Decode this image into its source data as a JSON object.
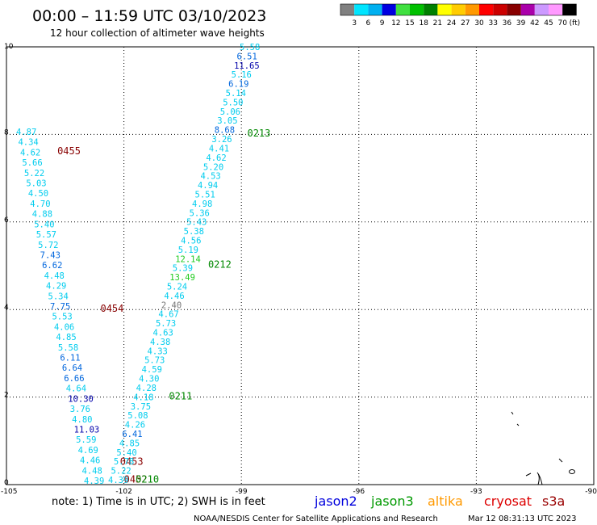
{
  "header": {
    "title": "00:00 – 11:59 UTC 03/10/2023",
    "subtitle": "12 hour collection of altimeter wave heights"
  },
  "legend": {
    "labels": [
      "3",
      "6",
      "9",
      "12",
      "15",
      "18",
      "21",
      "24",
      "27",
      "30",
      "33",
      "36",
      "39",
      "42",
      "45",
      "70"
    ],
    "unit": "(ft)",
    "colors": [
      "#808080",
      "#00e5ff",
      "#00b0f0",
      "#0000e0",
      "#40e040",
      "#00c000",
      "#008000",
      "#ffff00",
      "#ffcc00",
      "#ff9900",
      "#ff0000",
      "#cc0000",
      "#880000",
      "#aa00aa",
      "#cc99ff",
      "#ff99ff",
      "#000000"
    ]
  },
  "axes": {
    "x_ticks": [
      "-105",
      "-102",
      "-99",
      "-96",
      "-93",
      "-90"
    ],
    "y_ticks": [
      "0",
      "2",
      "4",
      "6",
      "8",
      "10"
    ]
  },
  "footer": {
    "note": "note:  1) Time is in UTC;  2) SWH is in feet",
    "satellites": [
      {
        "name": "jason2",
        "color": "#0000dd"
      },
      {
        "name": "jason3",
        "color": "#009900"
      },
      {
        "name": "altika",
        "color": "#ff9900"
      },
      {
        "name": "cryosat",
        "color": "#dd0000"
      },
      {
        "name": "s3a",
        "color": "#990000"
      }
    ],
    "credit": "NOAA/NESDIS Center for Satellite Applications and Research",
    "timestamp": "Mar 12 08:31:13 UTC 2023"
  },
  "tracks": [
    {
      "readings": [
        {
          "v": "4.87",
          "c": "cyan"
        },
        {
          "v": "4.34",
          "c": "cyan"
        },
        {
          "v": "4.62",
          "c": "cyan"
        },
        {
          "v": "5.66",
          "c": "cyan"
        },
        {
          "v": "5.22",
          "c": "cyan"
        },
        {
          "v": "5.03",
          "c": "cyan"
        },
        {
          "v": "4.50",
          "c": "cyan"
        },
        {
          "v": "4.70",
          "c": "cyan"
        },
        {
          "v": "4.88",
          "c": "cyan"
        },
        {
          "v": "5.40",
          "c": "cyan"
        },
        {
          "v": "5.57",
          "c": "cyan"
        },
        {
          "v": "5.72",
          "c": "cyan"
        },
        {
          "v": "7.43",
          "c": "blue"
        },
        {
          "v": "6.62",
          "c": "blue"
        },
        {
          "v": "4.48",
          "c": "cyan"
        },
        {
          "v": "4.29",
          "c": "cyan"
        },
        {
          "v": "5.34",
          "c": "cyan"
        },
        {
          "v": "7.75",
          "c": "blue"
        },
        {
          "v": "5.53",
          "c": "cyan"
        },
        {
          "v": "4.06",
          "c": "cyan"
        },
        {
          "v": "4.85",
          "c": "cyan"
        },
        {
          "v": "5.58",
          "c": "cyan"
        },
        {
          "v": "6.11",
          "c": "blue"
        },
        {
          "v": "6.64",
          "c": "blue"
        },
        {
          "v": "6.66",
          "c": "blue"
        },
        {
          "v": "4.64",
          "c": "cyan"
        },
        {
          "v": "10.30",
          "c": "navy"
        },
        {
          "v": "3.76",
          "c": "cyan"
        },
        {
          "v": "4.80",
          "c": "cyan"
        },
        {
          "v": "11.03",
          "c": "navy"
        },
        {
          "v": "5.59",
          "c": "cyan"
        },
        {
          "v": "4.69",
          "c": "cyan"
        },
        {
          "v": "4.46",
          "c": "cyan"
        },
        {
          "v": "4.48",
          "c": "cyan"
        },
        {
          "v": "4.39",
          "c": "cyan"
        }
      ],
      "times": [
        {
          "label": "0455",
          "lon": -103.7,
          "lat": 7.55
        },
        {
          "label": "0454",
          "lon": -102.6,
          "lat": 3.95
        },
        {
          "label": "0453",
          "lon": -102.1,
          "lat": 0.45
        },
        {
          "label": "0452",
          "lon": -102.0,
          "lat": 0.05
        }
      ]
    },
    {
      "readings": [
        {
          "v": "5.58",
          "c": "cyan"
        },
        {
          "v": "6.51",
          "c": "blue"
        },
        {
          "v": "11.65",
          "c": "navy"
        },
        {
          "v": "5.16",
          "c": "cyan"
        },
        {
          "v": "6.19",
          "c": "blue"
        },
        {
          "v": "5.14",
          "c": "cyan"
        },
        {
          "v": "5.50",
          "c": "cyan"
        },
        {
          "v": "5.06",
          "c": "cyan"
        },
        {
          "v": "3.05",
          "c": "cyan"
        },
        {
          "v": "8.68",
          "c": "blue"
        },
        {
          "v": "3.26",
          "c": "cyan"
        },
        {
          "v": "4.41",
          "c": "cyan"
        },
        {
          "v": "4.62",
          "c": "cyan"
        },
        {
          "v": "5.20",
          "c": "cyan"
        },
        {
          "v": "4.53",
          "c": "cyan"
        },
        {
          "v": "4.94",
          "c": "cyan"
        },
        {
          "v": "5.51",
          "c": "cyan"
        },
        {
          "v": "4.98",
          "c": "cyan"
        },
        {
          "v": "5.36",
          "c": "cyan"
        },
        {
          "v": "5.43",
          "c": "cyan"
        },
        {
          "v": "5.38",
          "c": "cyan"
        },
        {
          "v": "4.56",
          "c": "cyan"
        },
        {
          "v": "5.19",
          "c": "cyan"
        },
        {
          "v": "12.14",
          "c": "green"
        },
        {
          "v": "5.39",
          "c": "cyan"
        },
        {
          "v": "13.49",
          "c": "green"
        },
        {
          "v": "5.24",
          "c": "cyan"
        },
        {
          "v": "4.46",
          "c": "cyan"
        },
        {
          "v": "2.40",
          "c": "gray"
        },
        {
          "v": "4.67",
          "c": "cyan"
        },
        {
          "v": "5.73",
          "c": "cyan"
        },
        {
          "v": "4.63",
          "c": "cyan"
        },
        {
          "v": "4.38",
          "c": "cyan"
        },
        {
          "v": "4.33",
          "c": "cyan"
        },
        {
          "v": "5.73",
          "c": "cyan"
        },
        {
          "v": "4.59",
          "c": "cyan"
        },
        {
          "v": "4.30",
          "c": "cyan"
        },
        {
          "v": "4.28",
          "c": "cyan"
        },
        {
          "v": "4.18",
          "c": "cyan"
        },
        {
          "v": "3.75",
          "c": "cyan"
        },
        {
          "v": "5.08",
          "c": "cyan"
        },
        {
          "v": "4.26",
          "c": "cyan"
        },
        {
          "v": "6.41",
          "c": "blue"
        },
        {
          "v": "4.85",
          "c": "cyan"
        },
        {
          "v": "5.40",
          "c": "cyan"
        },
        {
          "v": "5.78",
          "c": "cyan"
        },
        {
          "v": "5.22",
          "c": "cyan"
        },
        {
          "v": "4.39",
          "c": "cyan"
        }
      ],
      "times": [
        {
          "label": "0213",
          "lon": -98.85,
          "lat": 7.95
        },
        {
          "label": "0212",
          "lon": -99.85,
          "lat": 4.95
        },
        {
          "label": "0211",
          "lon": -100.85,
          "lat": 1.95
        },
        {
          "label": "0210",
          "lon": -101.7,
          "lat": 0.05
        }
      ]
    }
  ],
  "palette": {
    "cyan": "#00ccee",
    "blue": "#0066dd",
    "navy": "#0000aa",
    "green": "#22cc22",
    "gray": "#777777",
    "time_jason3": "#008800",
    "time_cryosat": "#880000"
  }
}
